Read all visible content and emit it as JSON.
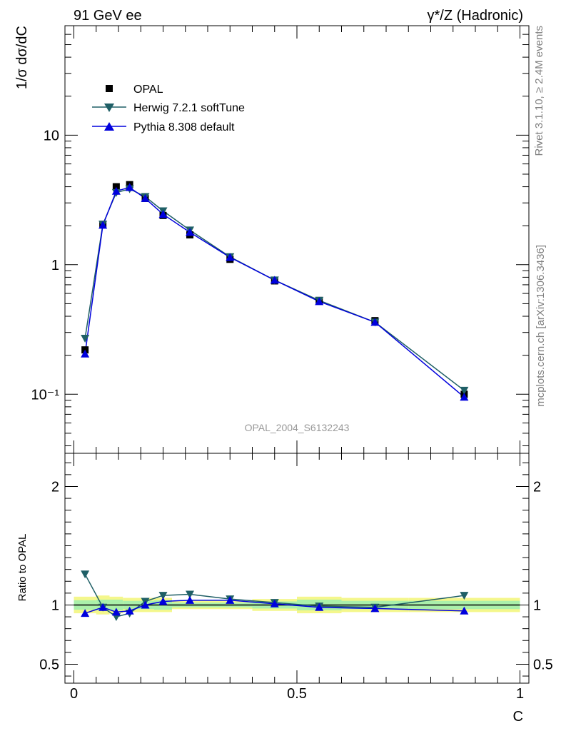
{
  "header": {
    "left": "91 GeV ee",
    "right": "γ*/Z (Hadronic)"
  },
  "side_labels": {
    "rivet": "Rivet 3.1.10, ≥ 2.4M events",
    "source": "mcplots.cern.ch [arXiv:1306.3436]"
  },
  "watermark": "OPAL_2004_S6132243",
  "legend": {
    "data": "OPAL",
    "herwig": "Herwig 7.2.1 softTune",
    "pythia": "Pythia 8.308 default"
  },
  "colors": {
    "data": "#000000",
    "herwig": "#1f5f66",
    "pythia": "#0000dd",
    "band_inner": "#aaf0aa",
    "band_outer": "#f4f78c"
  },
  "chart_data": [
    {
      "type": "scatter",
      "panel": "main",
      "ylabel": "1/σ dσ/dC",
      "yscale": "log",
      "ylim": [
        0.035,
        70
      ],
      "xlim": [
        -0.02,
        1.02
      ],
      "ytick_labels": [
        "10⁻¹",
        "1",
        "10"
      ],
      "bins": [
        {
          "lo": 0.0,
          "hi": 0.05,
          "x": 0.025
        },
        {
          "lo": 0.05,
          "hi": 0.08,
          "x": 0.065
        },
        {
          "lo": 0.08,
          "hi": 0.11,
          "x": 0.095
        },
        {
          "lo": 0.11,
          "hi": 0.14,
          "x": 0.125
        },
        {
          "lo": 0.14,
          "hi": 0.18,
          "x": 0.16
        },
        {
          "lo": 0.18,
          "hi": 0.22,
          "x": 0.2
        },
        {
          "lo": 0.22,
          "hi": 0.3,
          "x": 0.26
        },
        {
          "lo": 0.3,
          "hi": 0.4,
          "x": 0.35
        },
        {
          "lo": 0.4,
          "hi": 0.5,
          "x": 0.45
        },
        {
          "lo": 0.5,
          "hi": 0.6,
          "x": 0.55
        },
        {
          "lo": 0.6,
          "hi": 0.75,
          "x": 0.675
        },
        {
          "lo": 0.75,
          "hi": 1.0,
          "x": 0.875
        }
      ],
      "series": [
        {
          "name": "OPAL",
          "marker": "square",
          "values": [
            0.22,
            2.05,
            4.0,
            4.15,
            3.25,
            2.4,
            1.7,
            1.1,
            0.75,
            0.53,
            0.37,
            0.1
          ]
        },
        {
          "name": "Herwig 7.2.1 softTune",
          "marker": "triangle-down",
          "values": [
            0.27,
            2.05,
            3.6,
            3.85,
            3.35,
            2.6,
            1.85,
            1.15,
            0.76,
            0.53,
            0.36,
            0.107
          ]
        },
        {
          "name": "Pythia 8.308 default",
          "marker": "triangle-up",
          "values": [
            0.205,
            2.02,
            3.7,
            3.95,
            3.25,
            2.45,
            1.78,
            1.14,
            0.76,
            0.52,
            0.36,
            0.095
          ]
        }
      ]
    },
    {
      "type": "line",
      "panel": "ratio",
      "ylabel": "Ratio to OPAL",
      "xlabel": "C",
      "ylim": [
        0.34,
        2.28
      ],
      "xlim": [
        -0.02,
        1.02
      ],
      "x_tick_labels": [
        "0",
        "0.5",
        "1"
      ],
      "y_tick_labels": [
        "0.5",
        "1",
        "2"
      ],
      "band_inner_halfwidth": [
        0.04,
        0.045,
        0.045,
        0.035,
        0.035,
        0.04,
        0.02,
        0.02,
        0.03,
        0.045,
        0.035,
        0.035
      ],
      "band_outer_halfwidth": [
        0.07,
        0.08,
        0.07,
        0.06,
        0.06,
        0.06,
        0.035,
        0.035,
        0.05,
        0.07,
        0.06,
        0.06
      ],
      "series": [
        {
          "name": "Herwig 7.2.1 softTune",
          "values": [
            1.26,
            0.98,
            0.9,
            0.93,
            1.03,
            1.08,
            1.09,
            1.05,
            1.02,
            0.99,
            0.98,
            1.08
          ]
        },
        {
          "name": "Pythia 8.308 default",
          "values": [
            0.93,
            0.98,
            0.94,
            0.95,
            1.0,
            1.03,
            1.04,
            1.04,
            1.01,
            0.98,
            0.97,
            0.95
          ]
        }
      ]
    }
  ]
}
